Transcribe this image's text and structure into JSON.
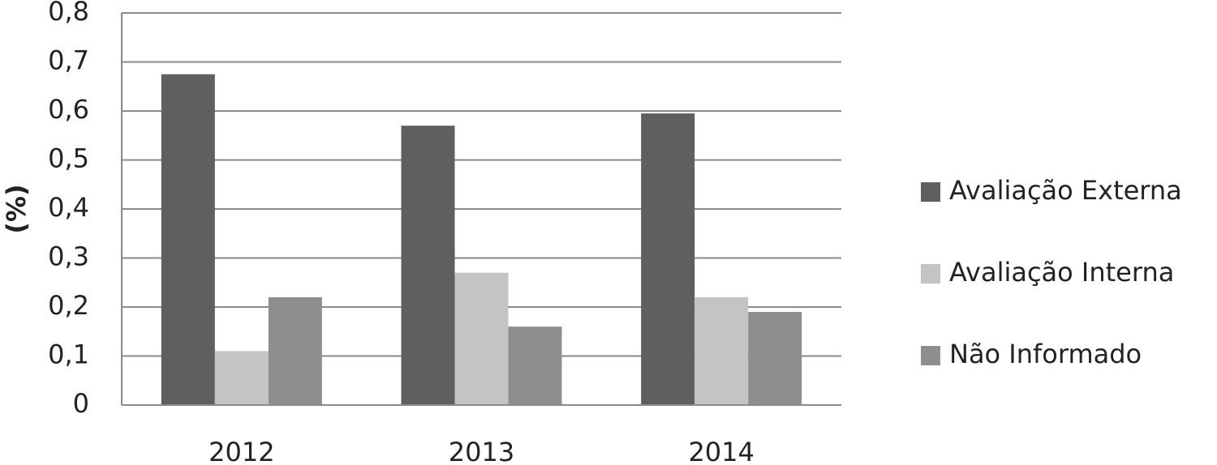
{
  "chart_data": {
    "type": "bar",
    "y_label": "(%)",
    "categories": [
      "2012",
      "2013",
      "2014"
    ],
    "series": [
      {
        "name": "Avaliação Externa",
        "color": "#5f5f5f",
        "values": [
          0.675,
          0.57,
          0.595
        ]
      },
      {
        "name": "Avaliação Interna",
        "color": "#c4c4c4",
        "values": [
          0.11,
          0.27,
          0.22
        ]
      },
      {
        "name": "Não Informado",
        "color": "#8e8e8e",
        "values": [
          0.22,
          0.16,
          0.19
        ]
      }
    ],
    "ylim": [
      0,
      0.8
    ],
    "yticks": [
      0,
      {
        "value": 0.1,
        "label": "0,1"
      },
      {
        "value": 0.2,
        "label": "0,2"
      },
      {
        "value": 0.3,
        "label": "0,3"
      },
      {
        "value": 0.4,
        "label": "0,4"
      },
      {
        "value": 0.5,
        "label": "0,5"
      },
      {
        "value": 0.6,
        "label": "0,6"
      },
      {
        "value": 0.7,
        "label": "0,7"
      },
      {
        "value": 0.8,
        "label": "0,8"
      }
    ],
    "grid": true,
    "legend": "right"
  }
}
